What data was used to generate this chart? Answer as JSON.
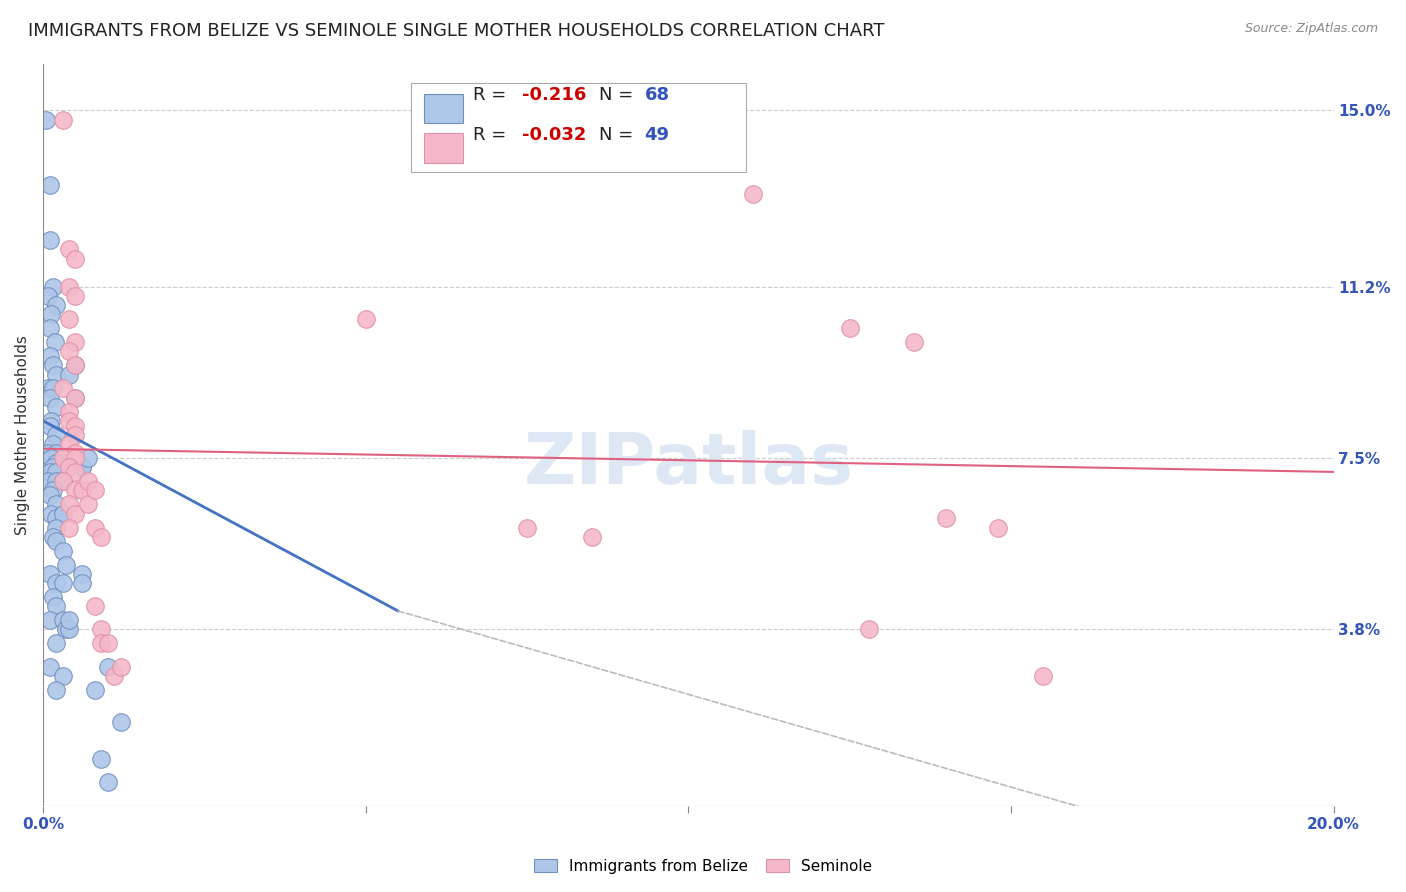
{
  "title": "IMMIGRANTS FROM BELIZE VS SEMINOLE SINGLE MOTHER HOUSEHOLDS CORRELATION CHART",
  "source": "Source: ZipAtlas.com",
  "ylabel": "Single Mother Households",
  "ytick_labels": [
    "15.0%",
    "11.2%",
    "7.5%",
    "3.8%"
  ],
  "ytick_values": [
    0.15,
    0.112,
    0.075,
    0.038
  ],
  "xlim": [
    0.0,
    0.2
  ],
  "ylim": [
    0.0,
    0.16
  ],
  "blue_scatter": [
    [
      0.0005,
      0.148
    ],
    [
      0.001,
      0.134
    ],
    [
      0.001,
      0.122
    ],
    [
      0.0015,
      0.112
    ],
    [
      0.0008,
      0.11
    ],
    [
      0.002,
      0.108
    ],
    [
      0.0012,
      0.106
    ],
    [
      0.001,
      0.103
    ],
    [
      0.0018,
      0.1
    ],
    [
      0.001,
      0.097
    ],
    [
      0.0015,
      0.095
    ],
    [
      0.002,
      0.093
    ],
    [
      0.0008,
      0.09
    ],
    [
      0.0015,
      0.09
    ],
    [
      0.001,
      0.088
    ],
    [
      0.002,
      0.086
    ],
    [
      0.0012,
      0.083
    ],
    [
      0.001,
      0.082
    ],
    [
      0.002,
      0.08
    ],
    [
      0.0015,
      0.078
    ],
    [
      0.0008,
      0.076
    ],
    [
      0.002,
      0.076
    ],
    [
      0.0012,
      0.075
    ],
    [
      0.002,
      0.074
    ],
    [
      0.0015,
      0.073
    ],
    [
      0.001,
      0.072
    ],
    [
      0.002,
      0.072
    ],
    [
      0.0008,
      0.07
    ],
    [
      0.002,
      0.07
    ],
    [
      0.003,
      0.07
    ],
    [
      0.0015,
      0.068
    ],
    [
      0.001,
      0.067
    ],
    [
      0.002,
      0.065
    ],
    [
      0.0012,
      0.063
    ],
    [
      0.002,
      0.062
    ],
    [
      0.003,
      0.063
    ],
    [
      0.002,
      0.06
    ],
    [
      0.0015,
      0.058
    ],
    [
      0.002,
      0.057
    ],
    [
      0.003,
      0.055
    ],
    [
      0.0035,
      0.052
    ],
    [
      0.001,
      0.05
    ],
    [
      0.002,
      0.048
    ],
    [
      0.003,
      0.048
    ],
    [
      0.0015,
      0.045
    ],
    [
      0.002,
      0.043
    ],
    [
      0.001,
      0.04
    ],
    [
      0.003,
      0.04
    ],
    [
      0.0035,
      0.038
    ],
    [
      0.002,
      0.035
    ],
    [
      0.001,
      0.03
    ],
    [
      0.003,
      0.028
    ],
    [
      0.002,
      0.025
    ],
    [
      0.005,
      0.095
    ],
    [
      0.005,
      0.088
    ],
    [
      0.006,
      0.073
    ],
    [
      0.006,
      0.073
    ],
    [
      0.007,
      0.075
    ],
    [
      0.004,
      0.093
    ],
    [
      0.009,
      0.01
    ],
    [
      0.01,
      0.03
    ],
    [
      0.012,
      0.018
    ],
    [
      0.006,
      0.05
    ],
    [
      0.006,
      0.048
    ],
    [
      0.004,
      0.038
    ],
    [
      0.004,
      0.04
    ],
    [
      0.008,
      0.025
    ],
    [
      0.01,
      0.005
    ]
  ],
  "pink_scatter": [
    [
      0.003,
      0.148
    ],
    [
      0.004,
      0.12
    ],
    [
      0.005,
      0.118
    ],
    [
      0.004,
      0.112
    ],
    [
      0.005,
      0.11
    ],
    [
      0.004,
      0.105
    ],
    [
      0.005,
      0.1
    ],
    [
      0.004,
      0.098
    ],
    [
      0.005,
      0.095
    ],
    [
      0.003,
      0.09
    ],
    [
      0.005,
      0.088
    ],
    [
      0.004,
      0.085
    ],
    [
      0.004,
      0.083
    ],
    [
      0.005,
      0.082
    ],
    [
      0.005,
      0.08
    ],
    [
      0.004,
      0.078
    ],
    [
      0.005,
      0.076
    ],
    [
      0.003,
      0.075
    ],
    [
      0.005,
      0.075
    ],
    [
      0.004,
      0.073
    ],
    [
      0.005,
      0.072
    ],
    [
      0.003,
      0.07
    ],
    [
      0.005,
      0.068
    ],
    [
      0.004,
      0.065
    ],
    [
      0.005,
      0.063
    ],
    [
      0.004,
      0.06
    ],
    [
      0.006,
      0.068
    ],
    [
      0.007,
      0.065
    ],
    [
      0.007,
      0.07
    ],
    [
      0.008,
      0.068
    ],
    [
      0.008,
      0.06
    ],
    [
      0.009,
      0.058
    ],
    [
      0.008,
      0.043
    ],
    [
      0.009,
      0.038
    ],
    [
      0.009,
      0.035
    ],
    [
      0.01,
      0.035
    ],
    [
      0.011,
      0.028
    ],
    [
      0.012,
      0.03
    ],
    [
      0.095,
      0.152
    ],
    [
      0.11,
      0.132
    ],
    [
      0.125,
      0.103
    ],
    [
      0.135,
      0.1
    ],
    [
      0.14,
      0.062
    ],
    [
      0.148,
      0.06
    ],
    [
      0.155,
      0.028
    ],
    [
      0.128,
      0.038
    ],
    [
      0.05,
      0.105
    ],
    [
      0.075,
      0.06
    ],
    [
      0.085,
      0.058
    ]
  ],
  "blue_line": {
    "x": [
      0.0,
      0.055
    ],
    "y": [
      0.083,
      0.042
    ]
  },
  "pink_line": {
    "x": [
      0.0,
      0.2
    ],
    "y": [
      0.077,
      0.072
    ]
  },
  "dashed_line": {
    "x": [
      0.055,
      0.185
    ],
    "y": [
      0.042,
      -0.01
    ]
  },
  "scatter_size": 160,
  "blue_color": "#aec6e8",
  "pink_color": "#f4b8c8",
  "blue_edge": "#7090c0",
  "pink_edge": "#e090a8",
  "blue_line_color": "#4472c4",
  "pink_line_color": "#e06080",
  "dashed_line_color": "#bbbbbb",
  "grid_color": "#cccccc",
  "background_color": "#ffffff",
  "title_fontsize": 13,
  "axis_fontsize": 11,
  "tick_fontsize": 11,
  "watermark_text": "ZIPatlas",
  "watermark_color": "#dde8f4",
  "r_color": "#cc0000",
  "n_color": "#3355bb",
  "legend1_r": "-0.216",
  "legend1_n": "68",
  "legend2_r": "-0.032",
  "legend2_n": "49"
}
